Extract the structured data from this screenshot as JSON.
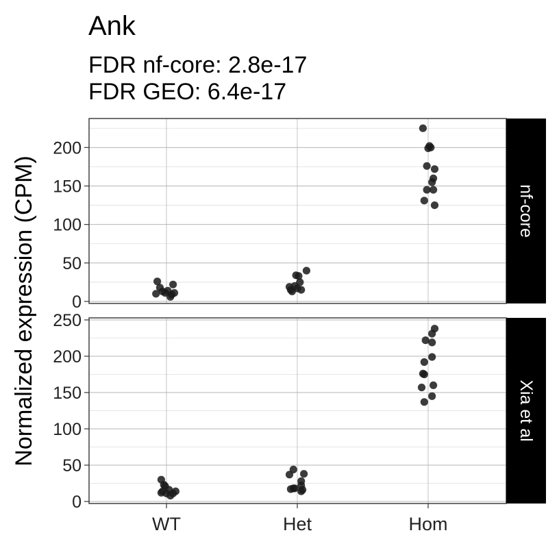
{
  "chart_data": {
    "type": "scatter",
    "title": "Ank",
    "subtitle_lines": [
      "FDR nf-core: 2.8e-17",
      "FDR GEO: 6.4e-17"
    ],
    "ylabel": "Normalized expression (CPM)",
    "xlabel": "",
    "categories": [
      "WT",
      "Het",
      "Hom"
    ],
    "grid": true,
    "point_color": "#1a1a1a",
    "strip_color": "#000000",
    "strip_text_color": "#ffffff",
    "panels": [
      {
        "strip_label": "nf-core",
        "ylim": [
          0,
          235
        ],
        "yticks": [
          0,
          50,
          100,
          150,
          200
        ],
        "ytick_labels": [
          "0",
          "50",
          "100",
          "150",
          "200"
        ],
        "points": [
          {
            "cat": "WT",
            "jitter": -0.07,
            "y": 26
          },
          {
            "cat": "WT",
            "jitter": -0.05,
            "y": 18
          },
          {
            "cat": "WT",
            "jitter": -0.08,
            "y": 10
          },
          {
            "cat": "WT",
            "jitter": -0.03,
            "y": 13
          },
          {
            "cat": "WT",
            "jitter": -0.01,
            "y": 11
          },
          {
            "cat": "WT",
            "jitter": 0.01,
            "y": 14
          },
          {
            "cat": "WT",
            "jitter": 0.03,
            "y": 6
          },
          {
            "cat": "WT",
            "jitter": 0.04,
            "y": 9
          },
          {
            "cat": "WT",
            "jitter": 0.05,
            "y": 22
          },
          {
            "cat": "WT",
            "jitter": 0.06,
            "y": 11
          },
          {
            "cat": "Het",
            "jitter": -0.06,
            "y": 19
          },
          {
            "cat": "Het",
            "jitter": -0.05,
            "y": 15
          },
          {
            "cat": "Het",
            "jitter": -0.04,
            "y": 13
          },
          {
            "cat": "Het",
            "jitter": -0.02,
            "y": 20
          },
          {
            "cat": "Het",
            "jitter": -0.01,
            "y": 34
          },
          {
            "cat": "Het",
            "jitter": 0.01,
            "y": 33
          },
          {
            "cat": "Het",
            "jitter": 0.0,
            "y": 17
          },
          {
            "cat": "Het",
            "jitter": 0.02,
            "y": 25
          },
          {
            "cat": "Het",
            "jitter": 0.03,
            "y": 15
          },
          {
            "cat": "Het",
            "jitter": 0.07,
            "y": 40
          },
          {
            "cat": "Hom",
            "jitter": -0.04,
            "y": 225
          },
          {
            "cat": "Hom",
            "jitter": 0.01,
            "y": 202
          },
          {
            "cat": "Hom",
            "jitter": 0.0,
            "y": 199
          },
          {
            "cat": "Hom",
            "jitter": 0.02,
            "y": 200
          },
          {
            "cat": "Hom",
            "jitter": -0.01,
            "y": 176
          },
          {
            "cat": "Hom",
            "jitter": 0.05,
            "y": 172
          },
          {
            "cat": "Hom",
            "jitter": 0.04,
            "y": 160
          },
          {
            "cat": "Hom",
            "jitter": 0.03,
            "y": 155
          },
          {
            "cat": "Hom",
            "jitter": -0.01,
            "y": 145
          },
          {
            "cat": "Hom",
            "jitter": 0.04,
            "y": 145
          },
          {
            "cat": "Hom",
            "jitter": -0.03,
            "y": 131
          },
          {
            "cat": "Hom",
            "jitter": 0.05,
            "y": 125
          }
        ]
      },
      {
        "strip_label": "Xia et al",
        "ylim": [
          0,
          250
        ],
        "yticks": [
          0,
          50,
          100,
          150,
          200,
          250
        ],
        "ytick_labels": [
          "0",
          "50",
          "100",
          "150",
          "200",
          "250"
        ],
        "points": [
          {
            "cat": "WT",
            "jitter": -0.04,
            "y": 30
          },
          {
            "cat": "WT",
            "jitter": -0.02,
            "y": 23
          },
          {
            "cat": "WT",
            "jitter": -0.03,
            "y": 14
          },
          {
            "cat": "WT",
            "jitter": -0.04,
            "y": 12
          },
          {
            "cat": "WT",
            "jitter": 0.0,
            "y": 11
          },
          {
            "cat": "WT",
            "jitter": -0.01,
            "y": 21
          },
          {
            "cat": "WT",
            "jitter": 0.02,
            "y": 16
          },
          {
            "cat": "WT",
            "jitter": 0.03,
            "y": 8
          },
          {
            "cat": "WT",
            "jitter": 0.05,
            "y": 11
          },
          {
            "cat": "WT",
            "jitter": 0.07,
            "y": 14
          },
          {
            "cat": "Het",
            "jitter": -0.06,
            "y": 37
          },
          {
            "cat": "Het",
            "jitter": -0.03,
            "y": 44
          },
          {
            "cat": "Het",
            "jitter": -0.05,
            "y": 17
          },
          {
            "cat": "Het",
            "jitter": -0.03,
            "y": 18
          },
          {
            "cat": "Het",
            "jitter": -0.02,
            "y": 18
          },
          {
            "cat": "Het",
            "jitter": 0.03,
            "y": 28
          },
          {
            "cat": "Het",
            "jitter": 0.03,
            "y": 22
          },
          {
            "cat": "Het",
            "jitter": 0.04,
            "y": 16
          },
          {
            "cat": "Het",
            "jitter": 0.03,
            "y": 14
          },
          {
            "cat": "Het",
            "jitter": 0.05,
            "y": 38
          },
          {
            "cat": "Hom",
            "jitter": 0.05,
            "y": 238
          },
          {
            "cat": "Hom",
            "jitter": 0.03,
            "y": 231
          },
          {
            "cat": "Hom",
            "jitter": -0.02,
            "y": 222
          },
          {
            "cat": "Hom",
            "jitter": 0.03,
            "y": 219
          },
          {
            "cat": "Hom",
            "jitter": 0.03,
            "y": 199
          },
          {
            "cat": "Hom",
            "jitter": -0.03,
            "y": 192
          },
          {
            "cat": "Hom",
            "jitter": -0.04,
            "y": 176
          },
          {
            "cat": "Hom",
            "jitter": -0.03,
            "y": 175
          },
          {
            "cat": "Hom",
            "jitter": 0.04,
            "y": 160
          },
          {
            "cat": "Hom",
            "jitter": -0.05,
            "y": 157
          },
          {
            "cat": "Hom",
            "jitter": 0.03,
            "y": 145
          },
          {
            "cat": "Hom",
            "jitter": -0.03,
            "y": 137
          }
        ]
      }
    ]
  }
}
